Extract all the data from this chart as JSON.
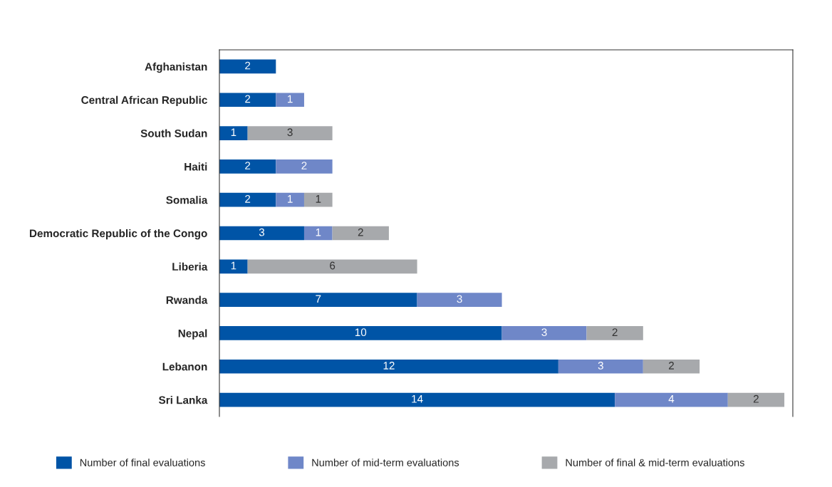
{
  "chart_data": {
    "type": "bar",
    "orientation": "horizontal",
    "stacked": true,
    "data_labels": true,
    "legend": "bottom",
    "grid": false,
    "tick_labels": "y",
    "xlim": [
      0,
      20.3
    ],
    "categories": [
      "Afghanistan",
      "Central African Republic",
      "South Sudan",
      "Haiti",
      "Somalia",
      "Democratic Republic of the Congo",
      "Liberia",
      "Rwanda",
      "Nepal",
      "Lebanon",
      "Sri Lanka"
    ],
    "series": [
      {
        "name": "Number of final evaluations",
        "color": "#0054a6",
        "values": [
          2,
          2,
          1,
          2,
          2,
          3,
          1,
          7,
          10,
          12,
          14
        ]
      },
      {
        "name": "Number of mid-term evaluations",
        "color": "#6f87c8",
        "values": [
          null,
          1,
          null,
          2,
          1,
          1,
          null,
          3,
          3,
          3,
          4
        ]
      },
      {
        "name": "Number of final & mid-term evaluations",
        "color": "#a7a9ac",
        "values": [
          null,
          null,
          3,
          null,
          1,
          2,
          6,
          null,
          2,
          2,
          2
        ]
      }
    ]
  }
}
